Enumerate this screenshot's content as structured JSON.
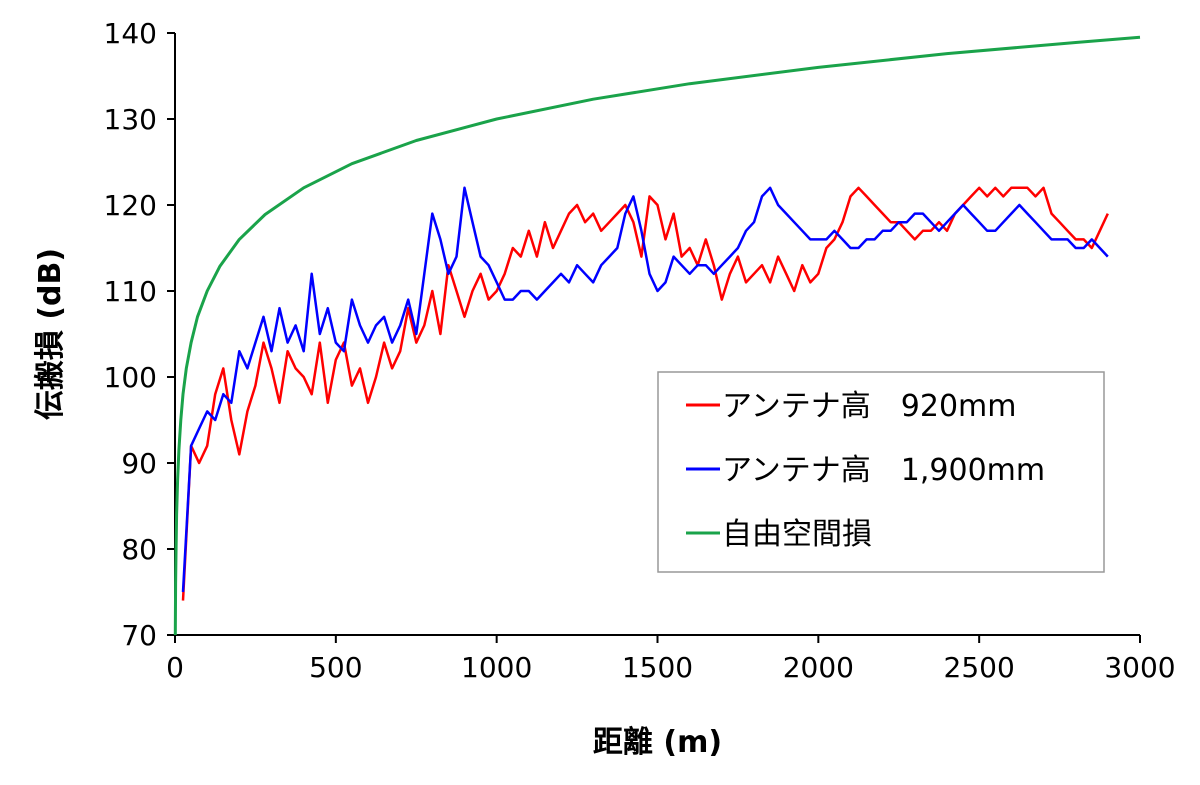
{
  "chart_data": {
    "type": "line",
    "xlabel": "距離 (m)",
    "ylabel": "伝搬損 (dB)",
    "xlim": [
      0,
      3000
    ],
    "ylim": [
      70,
      140
    ],
    "xticks": [
      0,
      500,
      1000,
      1500,
      2000,
      2500,
      3000
    ],
    "yticks": [
      70,
      80,
      90,
      100,
      110,
      120,
      130,
      140
    ],
    "grid": false,
    "legend_position": "center-right",
    "series": [
      {
        "name": "アンテナ高　920mm",
        "color": "#ff0000",
        "x": [
          25,
          50,
          75,
          100,
          125,
          150,
          175,
          200,
          225,
          250,
          275,
          300,
          325,
          350,
          375,
          400,
          425,
          450,
          475,
          500,
          525,
          550,
          575,
          600,
          625,
          650,
          675,
          700,
          725,
          750,
          775,
          800,
          825,
          850,
          875,
          900,
          925,
          950,
          975,
          1000,
          1025,
          1050,
          1075,
          1100,
          1125,
          1150,
          1175,
          1200,
          1225,
          1250,
          1275,
          1300,
          1325,
          1350,
          1375,
          1400,
          1425,
          1450,
          1475,
          1500,
          1525,
          1550,
          1575,
          1600,
          1625,
          1650,
          1675,
          1700,
          1725,
          1750,
          1775,
          1800,
          1825,
          1850,
          1875,
          1900,
          1925,
          1950,
          1975,
          2000,
          2025,
          2050,
          2075,
          2100,
          2125,
          2150,
          2175,
          2200,
          2225,
          2250,
          2275,
          2300,
          2325,
          2350,
          2375,
          2400,
          2425,
          2450,
          2475,
          2500,
          2525,
          2550,
          2575,
          2600,
          2625,
          2650,
          2675,
          2700,
          2725,
          2750,
          2775,
          2800,
          2825,
          2850,
          2875,
          2900
        ],
        "values": [
          74,
          92,
          90,
          92,
          98,
          101,
          95,
          91,
          96,
          99,
          104,
          101,
          97,
          103,
          101,
          100,
          98,
          104,
          97,
          102,
          104,
          99,
          101,
          97,
          100,
          104,
          101,
          103,
          108,
          104,
          106,
          110,
          105,
          113,
          110,
          107,
          110,
          112,
          109,
          110,
          112,
          115,
          114,
          117,
          114,
          118,
          115,
          117,
          119,
          120,
          118,
          119,
          117,
          118,
          119,
          120,
          118,
          114,
          121,
          120,
          116,
          119,
          114,
          115,
          113,
          116,
          113,
          109,
          112,
          114,
          111,
          112,
          113,
          111,
          114,
          112,
          110,
          113,
          111,
          112,
          115,
          116,
          118,
          121,
          122,
          121,
          120,
          119,
          118,
          118,
          117,
          116,
          117,
          117,
          118,
          117,
          119,
          120,
          121,
          122,
          121,
          122,
          121,
          122,
          122,
          122,
          121,
          122,
          119,
          118,
          117,
          116,
          116,
          115,
          117,
          119
        ]
      },
      {
        "name": "アンテナ高　1,900mm",
        "color": "#0000ff",
        "x": [
          25,
          50,
          75,
          100,
          125,
          150,
          175,
          200,
          225,
          250,
          275,
          300,
          325,
          350,
          375,
          400,
          425,
          450,
          475,
          500,
          525,
          550,
          575,
          600,
          625,
          650,
          675,
          700,
          725,
          750,
          775,
          800,
          825,
          850,
          875,
          900,
          925,
          950,
          975,
          1000,
          1025,
          1050,
          1075,
          1100,
          1125,
          1150,
          1175,
          1200,
          1225,
          1250,
          1275,
          1300,
          1325,
          1350,
          1375,
          1400,
          1425,
          1450,
          1475,
          1500,
          1525,
          1550,
          1575,
          1600,
          1625,
          1650,
          1675,
          1700,
          1725,
          1750,
          1775,
          1800,
          1825,
          1850,
          1875,
          1900,
          1925,
          1950,
          1975,
          2000,
          2025,
          2050,
          2075,
          2100,
          2125,
          2150,
          2175,
          2200,
          2225,
          2250,
          2275,
          2300,
          2325,
          2350,
          2375,
          2400,
          2425,
          2450,
          2475,
          2500,
          2525,
          2550,
          2575,
          2600,
          2625,
          2650,
          2675,
          2700,
          2725,
          2750,
          2775,
          2800,
          2825,
          2850,
          2875,
          2900
        ],
        "values": [
          75,
          92,
          94,
          96,
          95,
          98,
          97,
          103,
          101,
          104,
          107,
          103,
          108,
          104,
          106,
          103,
          112,
          105,
          108,
          104,
          103,
          109,
          106,
          104,
          106,
          107,
          104,
          106,
          109,
          105,
          112,
          119,
          116,
          112,
          114,
          122,
          118,
          114,
          113,
          111,
          109,
          109,
          110,
          110,
          109,
          110,
          111,
          112,
          111,
          113,
          112,
          111,
          113,
          114,
          115,
          119,
          121,
          117,
          112,
          110,
          111,
          114,
          113,
          112,
          113,
          113,
          112,
          113,
          114,
          115,
          117,
          118,
          121,
          122,
          120,
          119,
          118,
          117,
          116,
          116,
          116,
          117,
          116,
          115,
          115,
          116,
          116,
          117,
          117,
          118,
          118,
          119,
          119,
          118,
          117,
          118,
          119,
          120,
          119,
          118,
          117,
          117,
          118,
          119,
          120,
          119,
          118,
          117,
          116,
          116,
          116,
          115,
          115,
          116,
          115,
          114
        ]
      },
      {
        "name": "自由空間損",
        "color": "#1aa34a",
        "x": [
          1,
          2,
          3,
          5,
          8,
          12,
          18,
          25,
          35,
          50,
          70,
          100,
          140,
          200,
          280,
          400,
          550,
          750,
          1000,
          1300,
          1600,
          2000,
          2400,
          2800,
          3000
        ],
        "values": [
          70,
          76,
          79.5,
          84,
          88,
          91.5,
          95,
          98,
          101,
          104,
          107,
          110,
          112.9,
          116,
          118.9,
          122,
          124.8,
          127.5,
          130,
          132.3,
          134.1,
          136,
          137.6,
          138.9,
          139.5
        ]
      }
    ]
  }
}
